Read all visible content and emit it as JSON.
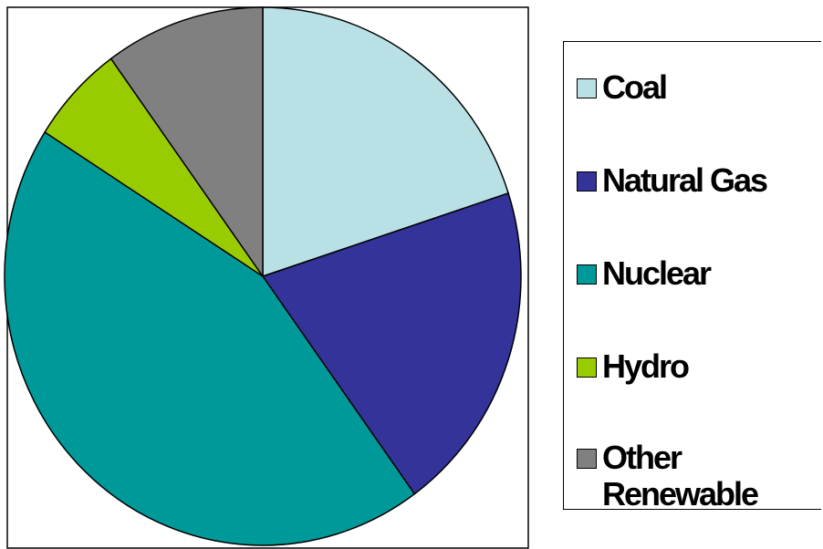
{
  "chart_data": {
    "type": "pie",
    "categories": [
      "Coal",
      "Natural Gas",
      "Nuclear",
      "Hydro",
      "Other Renewable"
    ],
    "values": [
      20,
      20,
      44,
      6,
      10
    ],
    "colors": [
      "#b9e0e4",
      "#333399",
      "#009999",
      "#99cc00",
      "#808080"
    ]
  }
}
